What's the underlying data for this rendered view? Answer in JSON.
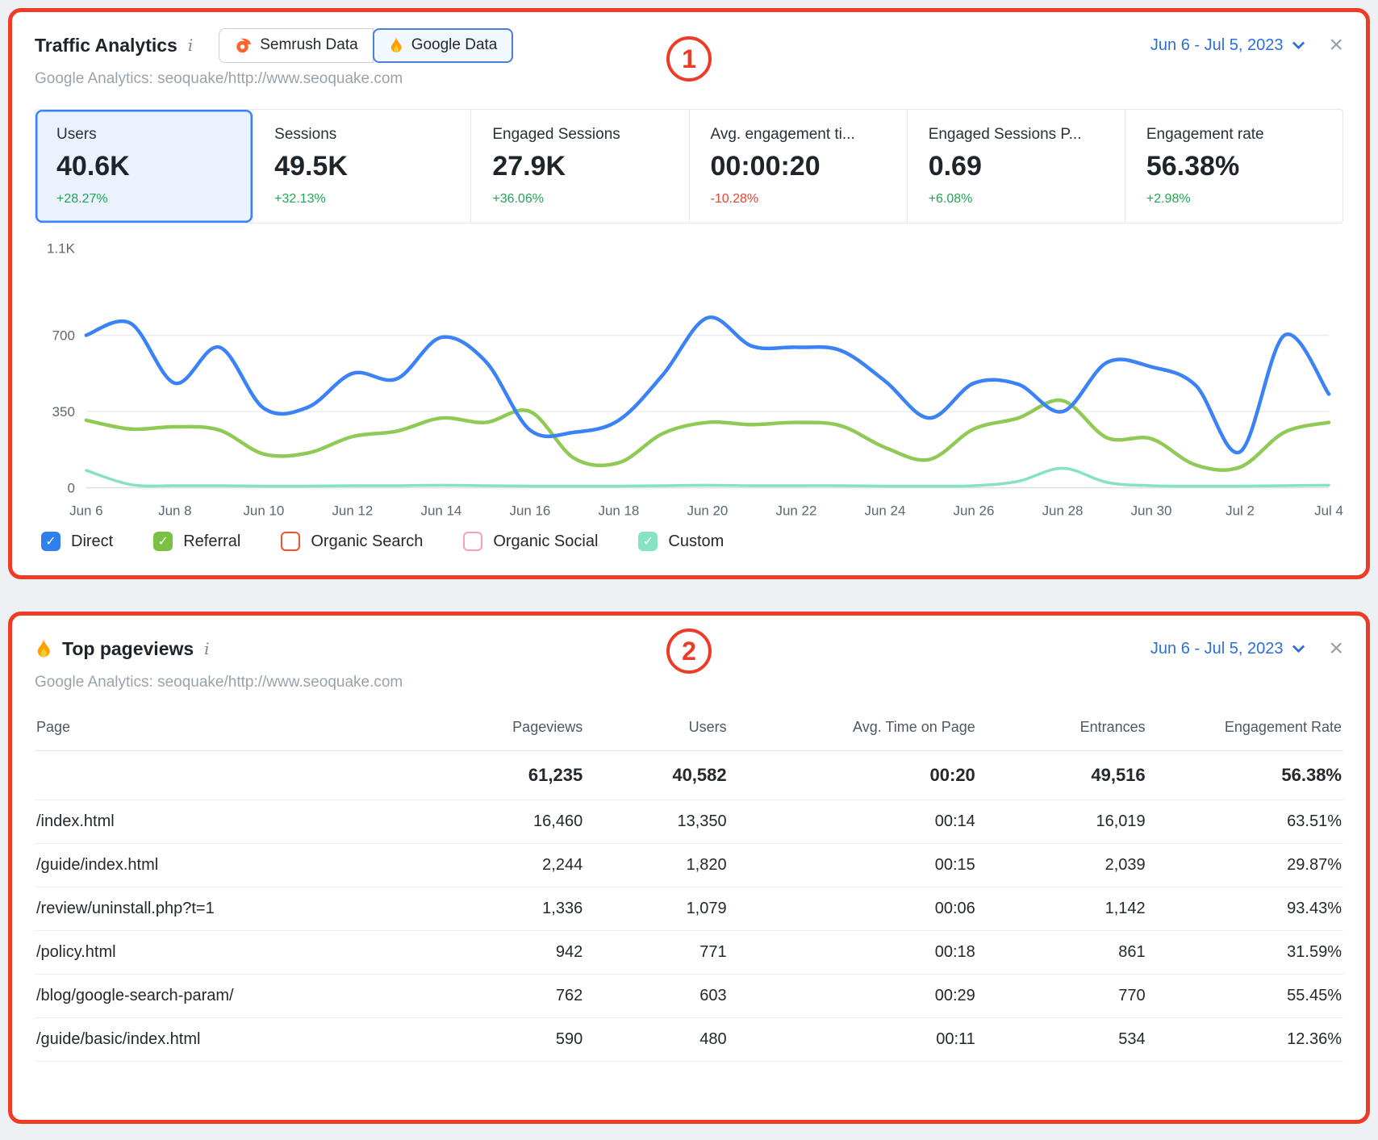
{
  "colors": {
    "annotation_red": "#ee3b26",
    "link_blue": "#2d6fd9",
    "positive_green": "#23a455",
    "negative_red": "#e2442e",
    "selected_card_blue": "#3b82f6"
  },
  "icons": {
    "info": "i",
    "close": "×",
    "check": "✓",
    "chevron_down": "css-chevron-shape",
    "semrush": "orange-semrush-logo",
    "google_flame": "firebase-flame"
  },
  "traffic_panel": {
    "annotation": "1",
    "title": "Traffic Analytics",
    "source_toggle": {
      "semrush_label": "Semrush Data",
      "google_label": "Google Data",
      "selected": "Google Data"
    },
    "date_range": "Jun 6 - Jul 5, 2023",
    "subtitle": "Google Analytics: seoquake/http://www.seoquake.com",
    "metrics": [
      {
        "label": "Users",
        "value": "40.6K",
        "delta": "+28.27%",
        "delta_type": "positive",
        "selected": true
      },
      {
        "label": "Sessions",
        "value": "49.5K",
        "delta": "+32.13%",
        "delta_type": "positive",
        "selected": false
      },
      {
        "label": "Engaged Sessions",
        "value": "27.9K",
        "delta": "+36.06%",
        "delta_type": "positive",
        "selected": false
      },
      {
        "label": "Avg. engagement ti...",
        "value": "00:00:20",
        "delta": "-10.28%",
        "delta_type": "negative",
        "selected": false
      },
      {
        "label": "Engaged Sessions P...",
        "value": "0.69",
        "delta": "+6.08%",
        "delta_type": "positive",
        "selected": false
      },
      {
        "label": "Engagement rate",
        "value": "56.38%",
        "delta": "+2.98%",
        "delta_type": "positive",
        "selected": false
      }
    ],
    "legend": [
      {
        "label": "Direct",
        "checked": true,
        "color": "#2f80ed"
      },
      {
        "label": "Referral",
        "checked": true,
        "color": "#7ac143"
      },
      {
        "label": "Organic Search",
        "checked": false,
        "color": "#f3502c"
      },
      {
        "label": "Organic Social",
        "checked": false,
        "color": "#f7a0bd"
      },
      {
        "label": "Custom",
        "checked": true,
        "color": "#85e2c2"
      }
    ]
  },
  "chart_data": {
    "type": "line",
    "title": "",
    "xlabel": "",
    "ylabel": "",
    "ylim": [
      0,
      1100
    ],
    "grid": "horizontal",
    "legend_position": "bottom",
    "x": [
      "Jun 6",
      "Jun 7",
      "Jun 8",
      "Jun 9",
      "Jun 10",
      "Jun 11",
      "Jun 12",
      "Jun 13",
      "Jun 14",
      "Jun 15",
      "Jun 16",
      "Jun 17",
      "Jun 18",
      "Jun 19",
      "Jun 20",
      "Jun 21",
      "Jun 22",
      "Jun 23",
      "Jun 24",
      "Jun 25",
      "Jun 26",
      "Jun 27",
      "Jun 28",
      "Jun 29",
      "Jun 30",
      "Jul 1",
      "Jul 2",
      "Jul 3",
      "Jul 4"
    ],
    "x_tick_labels": [
      "Jun 6",
      "Jun 8",
      "Jun 10",
      "Jun 12",
      "Jun 14",
      "Jun 16",
      "Jun 18",
      "Jun 20",
      "Jun 22",
      "Jun 24",
      "Jun 26",
      "Jun 28",
      "Jun 30",
      "Jul 2",
      "Jul 4"
    ],
    "y_ticks": [
      {
        "value": 0,
        "label": "0"
      },
      {
        "value": 350,
        "label": "350"
      },
      {
        "value": 700,
        "label": "700"
      },
      {
        "value": 1100,
        "label": "1.1K"
      }
    ],
    "series": [
      {
        "name": "Direct",
        "color": "#3b82f6",
        "visible": true,
        "line_width": 4.5,
        "values": [
          700,
          755,
          480,
          645,
          365,
          370,
          525,
          500,
          690,
          580,
          265,
          255,
          310,
          520,
          780,
          650,
          645,
          630,
          490,
          320,
          480,
          475,
          350,
          575,
          555,
          470,
          165,
          700,
          430
        ]
      },
      {
        "name": "Referral",
        "color": "#8fca56",
        "visible": true,
        "line_width": 4.5,
        "values": [
          310,
          270,
          280,
          265,
          155,
          160,
          235,
          260,
          320,
          300,
          350,
          135,
          115,
          250,
          300,
          290,
          300,
          285,
          185,
          130,
          270,
          320,
          400,
          230,
          225,
          105,
          95,
          255,
          300
        ]
      },
      {
        "name": "Organic Search",
        "color": "#f3502c",
        "visible": false,
        "line_width": 4.5,
        "values": []
      },
      {
        "name": "Organic Social",
        "color": "#f7a0bd",
        "visible": false,
        "line_width": 4.5,
        "values": []
      },
      {
        "name": "Custom",
        "color": "#85e2c2",
        "visible": true,
        "line_width": 3.5,
        "values": [
          80,
          15,
          10,
          10,
          8,
          8,
          10,
          10,
          12,
          10,
          8,
          8,
          8,
          10,
          12,
          10,
          10,
          10,
          8,
          8,
          10,
          30,
          90,
          25,
          10,
          8,
          8,
          10,
          12
        ]
      }
    ]
  },
  "pageviews_panel": {
    "annotation": "2",
    "title": "Top pageviews",
    "date_range": "Jun 6 - Jul 5, 2023",
    "subtitle": "Google Analytics: seoquake/http://www.seoquake.com",
    "columns": [
      "Page",
      "Pageviews",
      "Users",
      "Avg. Time on Page",
      "Entrances",
      "Engagement Rate"
    ],
    "totals": [
      "",
      "61,235",
      "40,582",
      "00:20",
      "49,516",
      "56.38%"
    ],
    "rows": [
      [
        "/index.html",
        "16,460",
        "13,350",
        "00:14",
        "16,019",
        "63.51%"
      ],
      [
        "/guide/index.html",
        "2,244",
        "1,820",
        "00:15",
        "2,039",
        "29.87%"
      ],
      [
        "/review/uninstall.php?t=1",
        "1,336",
        "1,079",
        "00:06",
        "1,142",
        "93.43%"
      ],
      [
        "/policy.html",
        "942",
        "771",
        "00:18",
        "861",
        "31.59%"
      ],
      [
        "/blog/google-search-param/",
        "762",
        "603",
        "00:29",
        "770",
        "55.45%"
      ],
      [
        "/guide/basic/index.html",
        "590",
        "480",
        "00:11",
        "534",
        "12.36%"
      ]
    ]
  }
}
